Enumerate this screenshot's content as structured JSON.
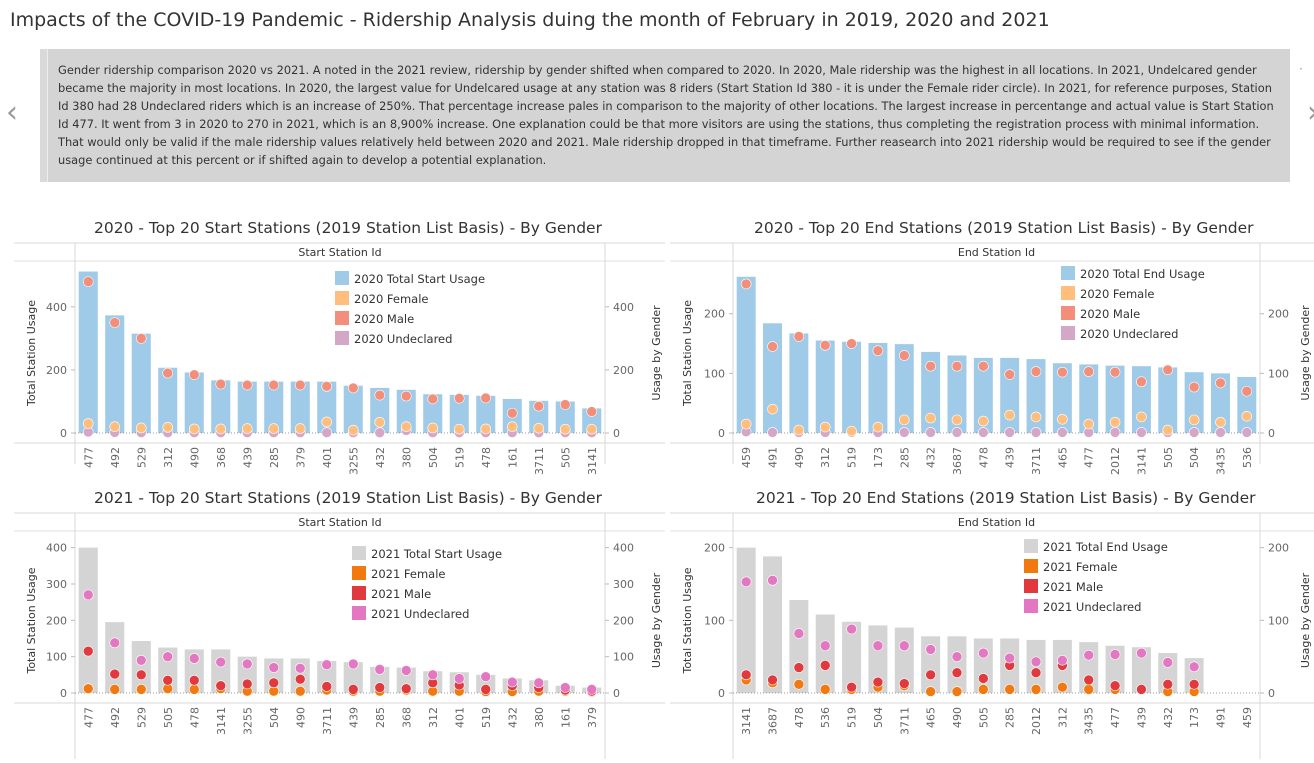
{
  "page": {
    "title": "Impacts of the COVID-19 Pandemic  - Ridership Analysis duing the month of February in 2019, 2020 and 2021",
    "story_text": "Gender ridership comparison 2020 vs 2021.   A noted in the 2021 review, ridership by gender shifted when compared to 2020.  In 2020, Male ridership was the highest in all locations.  In 2021, Undelcared gender became the majority in most locations.  In 2020, the largest value for Undelcared usage at any station was 8 riders (Start Station Id 380 - it is under the Female rider circle).  In 2021, for reference purposes, Station Id 380 had 28 Undeclared riders which is an increase of 250%.  That percentage increase pales in comparison to the majority of other locations.  The largest increase in percentange and actual value is Start Station Id 477.  It went from 3 in 2020 to 270 in 2021, which is an 8,900% increase.  One explanation could be that more visitors are using the stations, thus completing the registration process with minimal information.  That would only be valid if the male ridership values relatively held between 2020 and 2021.  Male ridership dropped in that timeframe. Further reasearch into 2021 ridership would be required to see if the gender usage continued at this percent or if shifted again to develop a potential explanation.",
    "prev_icon": "chevron-left-icon",
    "next_icon": "chevron-right-icon"
  },
  "chart_data": [
    {
      "type": "bar",
      "title": "2020 - Top 20  Start Stations (2019 Station List Basis) - By Gender",
      "xlabel": "Start Station Id",
      "ylabel": "Total Station Usage",
      "ylabel_right": "Usage by Gender",
      "ylim": [
        0,
        520
      ],
      "yticks": [
        0,
        200,
        400
      ],
      "grid": false,
      "legend_position": "top-right",
      "colors": {
        "bar": "#a0cbe8",
        "female": "#ffbe7d",
        "male": "#f28e79",
        "undeclared": "#d4a6c8"
      },
      "categories": [
        "477",
        "492",
        "529",
        "312",
        "490",
        "368",
        "439",
        "285",
        "379",
        "401",
        "3255",
        "432",
        "380",
        "504",
        "519",
        "478",
        "161",
        "3711",
        "505",
        "3141"
      ],
      "series": [
        {
          "name": "2020 Total Start Usage",
          "kind": "bar",
          "color": "#a0cbe8",
          "values": [
            512,
            373,
            315,
            207,
            192,
            167,
            163,
            163,
            163,
            163,
            150,
            143,
            137,
            123,
            121,
            118,
            108,
            102,
            100,
            78
          ]
        },
        {
          "name": "2020 Female",
          "kind": "dot",
          "color": "#ffbe7d",
          "values": [
            30,
            20,
            16,
            18,
            13,
            13,
            14,
            14,
            14,
            35,
            9,
            34,
            20,
            16,
            12,
            13,
            20,
            15,
            12,
            12
          ]
        },
        {
          "name": "2020 Male",
          "kind": "dot",
          "color": "#f28e79",
          "values": [
            480,
            350,
            300,
            190,
            185,
            155,
            152,
            152,
            152,
            148,
            143,
            120,
            117,
            108,
            110,
            111,
            63,
            85,
            90,
            68
          ]
        },
        {
          "name": "2020 Undeclared",
          "kind": "dot",
          "color": "#d4a6c8",
          "values": [
            3,
            2,
            1,
            1,
            1,
            1,
            1,
            1,
            1,
            1,
            1,
            1,
            8,
            1,
            1,
            1,
            1,
            1,
            1,
            1
          ]
        }
      ]
    },
    {
      "type": "bar",
      "title": "2020  - Top 20  End Stations (2019 Station List Basis) - By Gender",
      "xlabel": "End Station Id",
      "ylabel": "Total Station Usage",
      "ylabel_right": "Usage by Gender",
      "ylim": [
        0,
        275
      ],
      "yticks": [
        0,
        100,
        200
      ],
      "grid": false,
      "legend_position": "top-right",
      "colors": {
        "bar": "#a0cbe8",
        "female": "#ffbe7d",
        "male": "#f28e79",
        "undeclared": "#d4a6c8"
      },
      "categories": [
        "459",
        "491",
        "490",
        "312",
        "519",
        "173",
        "285",
        "432",
        "3687",
        "478",
        "439",
        "3711",
        "465",
        "477",
        "2012",
        "3141",
        "505",
        "504",
        "3435",
        "536"
      ],
      "series": [
        {
          "name": "2020 Total End Usage",
          "kind": "bar",
          "color": "#a0cbe8",
          "values": [
            262,
            184,
            167,
            155,
            153,
            151,
            149,
            136,
            130,
            126,
            126,
            124,
            117,
            115,
            113,
            112,
            110,
            102,
            100,
            94
          ]
        },
        {
          "name": "2020 Female",
          "kind": "dot",
          "color": "#ffbe7d",
          "values": [
            15,
            40,
            5,
            10,
            3,
            10,
            22,
            25,
            22,
            20,
            30,
            27,
            23,
            15,
            18,
            27,
            5,
            22,
            18,
            28
          ]
        },
        {
          "name": "2020 Male",
          "kind": "dot",
          "color": "#f28e79",
          "values": [
            250,
            145,
            162,
            147,
            150,
            138,
            130,
            112,
            112,
            112,
            98,
            103,
            102,
            103,
            102,
            86,
            106,
            77,
            84,
            70
          ]
        },
        {
          "name": "2020 Undeclared",
          "kind": "dot",
          "color": "#d4a6c8",
          "values": [
            2,
            1,
            1,
            1,
            1,
            1,
            1,
            1,
            1,
            1,
            1,
            1,
            1,
            1,
            1,
            1,
            1,
            1,
            1,
            1
          ]
        }
      ]
    },
    {
      "type": "bar",
      "title": "2021 - Top 20  Start Stations (2019 Station List Basis) - By Gender",
      "xlabel": "Start Station Id",
      "ylabel": "Total Station Usage",
      "ylabel_right": "Usage by Gender",
      "ylim": [
        0,
        410
      ],
      "yticks": [
        0,
        100,
        200,
        300,
        400
      ],
      "grid": false,
      "legend_position": "top-right",
      "colors": {
        "bar": "#d4d4d4",
        "female": "#f2790f",
        "male": "#e0393e",
        "undeclared": "#e377c2"
      },
      "categories": [
        "477",
        "492",
        "529",
        "505",
        "478",
        "3141",
        "3255",
        "504",
        "490",
        "3711",
        "439",
        "285",
        "368",
        "312",
        "401",
        "519",
        "432",
        "380",
        "161",
        "379"
      ],
      "series": [
        {
          "name": "2021 Total Start Usage",
          "kind": "bar",
          "color": "#d4d4d4",
          "values": [
            400,
            195,
            143,
            125,
            120,
            120,
            100,
            95,
            95,
            88,
            85,
            72,
            70,
            60,
            57,
            50,
            40,
            35,
            20,
            15
          ]
        },
        {
          "name": "2021 Female",
          "kind": "dot",
          "color": "#f2790f",
          "values": [
            12,
            10,
            10,
            12,
            10,
            12,
            5,
            5,
            5,
            8,
            5,
            5,
            8,
            5,
            5,
            4,
            4,
            5,
            5,
            3
          ]
        },
        {
          "name": "2021 Male",
          "kind": "dot",
          "color": "#e0393e",
          "values": [
            115,
            52,
            50,
            35,
            35,
            20,
            25,
            28,
            38,
            18,
            10,
            15,
            12,
            28,
            22,
            10,
            20,
            15,
            8,
            5
          ]
        },
        {
          "name": "2021 Undeclared",
          "kind": "dot",
          "color": "#e377c2",
          "values": [
            270,
            138,
            90,
            100,
            95,
            85,
            80,
            70,
            68,
            78,
            80,
            65,
            62,
            50,
            40,
            45,
            30,
            28,
            15,
            10
          ]
        }
      ]
    },
    {
      "type": "bar",
      "title": "2021 - Top 20  End Stations (2019 Station List Basis) - By Gender",
      "xlabel": "End Station Id",
      "ylabel": "Total Station Usage",
      "ylabel_right": "Usage by Gender",
      "ylim": [
        0,
        205
      ],
      "yticks": [
        0,
        100,
        200
      ],
      "grid": false,
      "legend_position": "top-right",
      "colors": {
        "bar": "#d4d4d4",
        "female": "#f2790f",
        "male": "#e0393e",
        "undeclared": "#e377c2"
      },
      "categories": [
        "3141",
        "3687",
        "478",
        "536",
        "519",
        "504",
        "3711",
        "465",
        "490",
        "505",
        "285",
        "2012",
        "312",
        "3435",
        "477",
        "439",
        "432",
        "173",
        "491",
        "459"
      ],
      "series": [
        {
          "name": "2021 Total End Usage",
          "kind": "bar",
          "color": "#d4d4d4",
          "values": [
            200,
            188,
            128,
            108,
            98,
            93,
            90,
            78,
            78,
            75,
            75,
            73,
            73,
            70,
            65,
            63,
            55,
            48,
            0,
            0
          ]
        },
        {
          "name": "2021 Female",
          "kind": "dot",
          "color": "#f2790f",
          "values": [
            18,
            14,
            12,
            5,
            5,
            8,
            10,
            2,
            2,
            5,
            5,
            5,
            8,
            5,
            5,
            5,
            2,
            2,
            null,
            null
          ]
        },
        {
          "name": "2021 Male",
          "kind": "dot",
          "color": "#e0393e",
          "values": [
            25,
            18,
            35,
            38,
            8,
            15,
            13,
            25,
            28,
            20,
            38,
            28,
            38,
            18,
            10,
            5,
            12,
            12,
            null,
            null
          ]
        },
        {
          "name": "2021 Undeclared",
          "kind": "dot",
          "color": "#e377c2",
          "values": [
            153,
            155,
            82,
            65,
            88,
            65,
            65,
            60,
            50,
            55,
            48,
            43,
            45,
            52,
            53,
            55,
            42,
            36,
            null,
            null
          ]
        }
      ]
    }
  ]
}
